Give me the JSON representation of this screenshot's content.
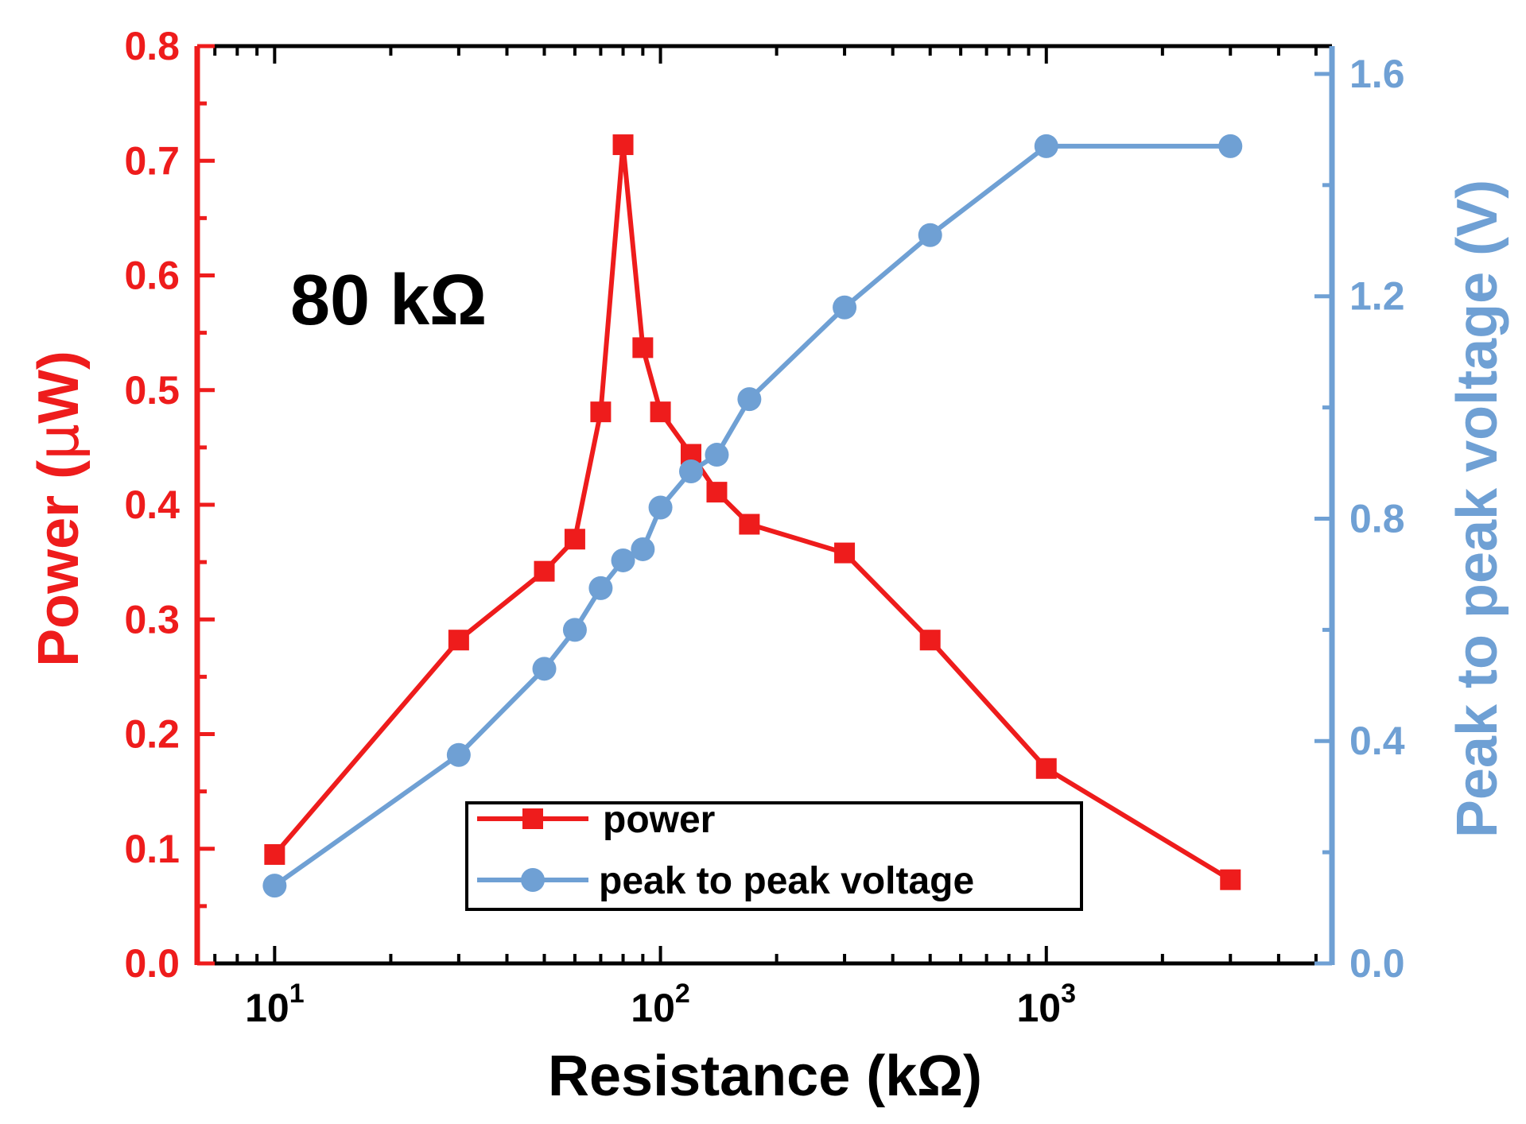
{
  "chart_data": {
    "type": "line",
    "title": "",
    "annotation": "80 kΩ",
    "xlabel": "Resistance (kΩ)",
    "x_scale": "log",
    "xlim": [
      6.3,
      5500
    ],
    "x_ticks": [
      {
        "value": 10,
        "base": "10",
        "exp": "1"
      },
      {
        "value": 100,
        "base": "10",
        "exp": "2"
      },
      {
        "value": 1000,
        "base": "10",
        "exp": "3"
      }
    ],
    "y_left": {
      "label_main": "Power (",
      "label_mu": "μ",
      "label_tail": "W)",
      "ylim": [
        0,
        0.8
      ],
      "ticks": [
        "0.0",
        "0.1",
        "0.2",
        "0.3",
        "0.4",
        "0.5",
        "0.6",
        "0.7",
        "0.8"
      ],
      "color": "#ee1c1c"
    },
    "y_right": {
      "label": "Peak to peak voltage (V)",
      "ylim": [
        0,
        1.65
      ],
      "ticks": [
        "0.0",
        "0.4",
        "0.8",
        "1.2",
        "1.6"
      ],
      "color": "#6fa0d4"
    },
    "legend": {
      "position": "bottom-center",
      "entries": [
        "power",
        "peak to peak voltage"
      ]
    },
    "series": [
      {
        "name": "power",
        "axis": "left",
        "marker": "square",
        "color": "#ee1c1c",
        "x": [
          10,
          30,
          50,
          60,
          70,
          80,
          90,
          100,
          120,
          140,
          170,
          300,
          500,
          1000,
          3000
        ],
        "y": [
          0.095,
          0.282,
          0.342,
          0.37,
          0.481,
          0.714,
          0.537,
          0.481,
          0.444,
          0.411,
          0.383,
          0.358,
          0.282,
          0.17,
          0.073
        ]
      },
      {
        "name": "peak to peak voltage",
        "axis": "right",
        "marker": "circle",
        "color": "#6fa0d4",
        "x": [
          10,
          30,
          50,
          60,
          70,
          80,
          90,
          100,
          120,
          140,
          170,
          300,
          500,
          1000,
          3000
        ],
        "y": [
          0.14,
          0.375,
          0.53,
          0.6,
          0.675,
          0.725,
          0.745,
          0.82,
          0.885,
          0.915,
          1.015,
          1.18,
          1.31,
          1.47,
          1.47
        ]
      }
    ]
  }
}
